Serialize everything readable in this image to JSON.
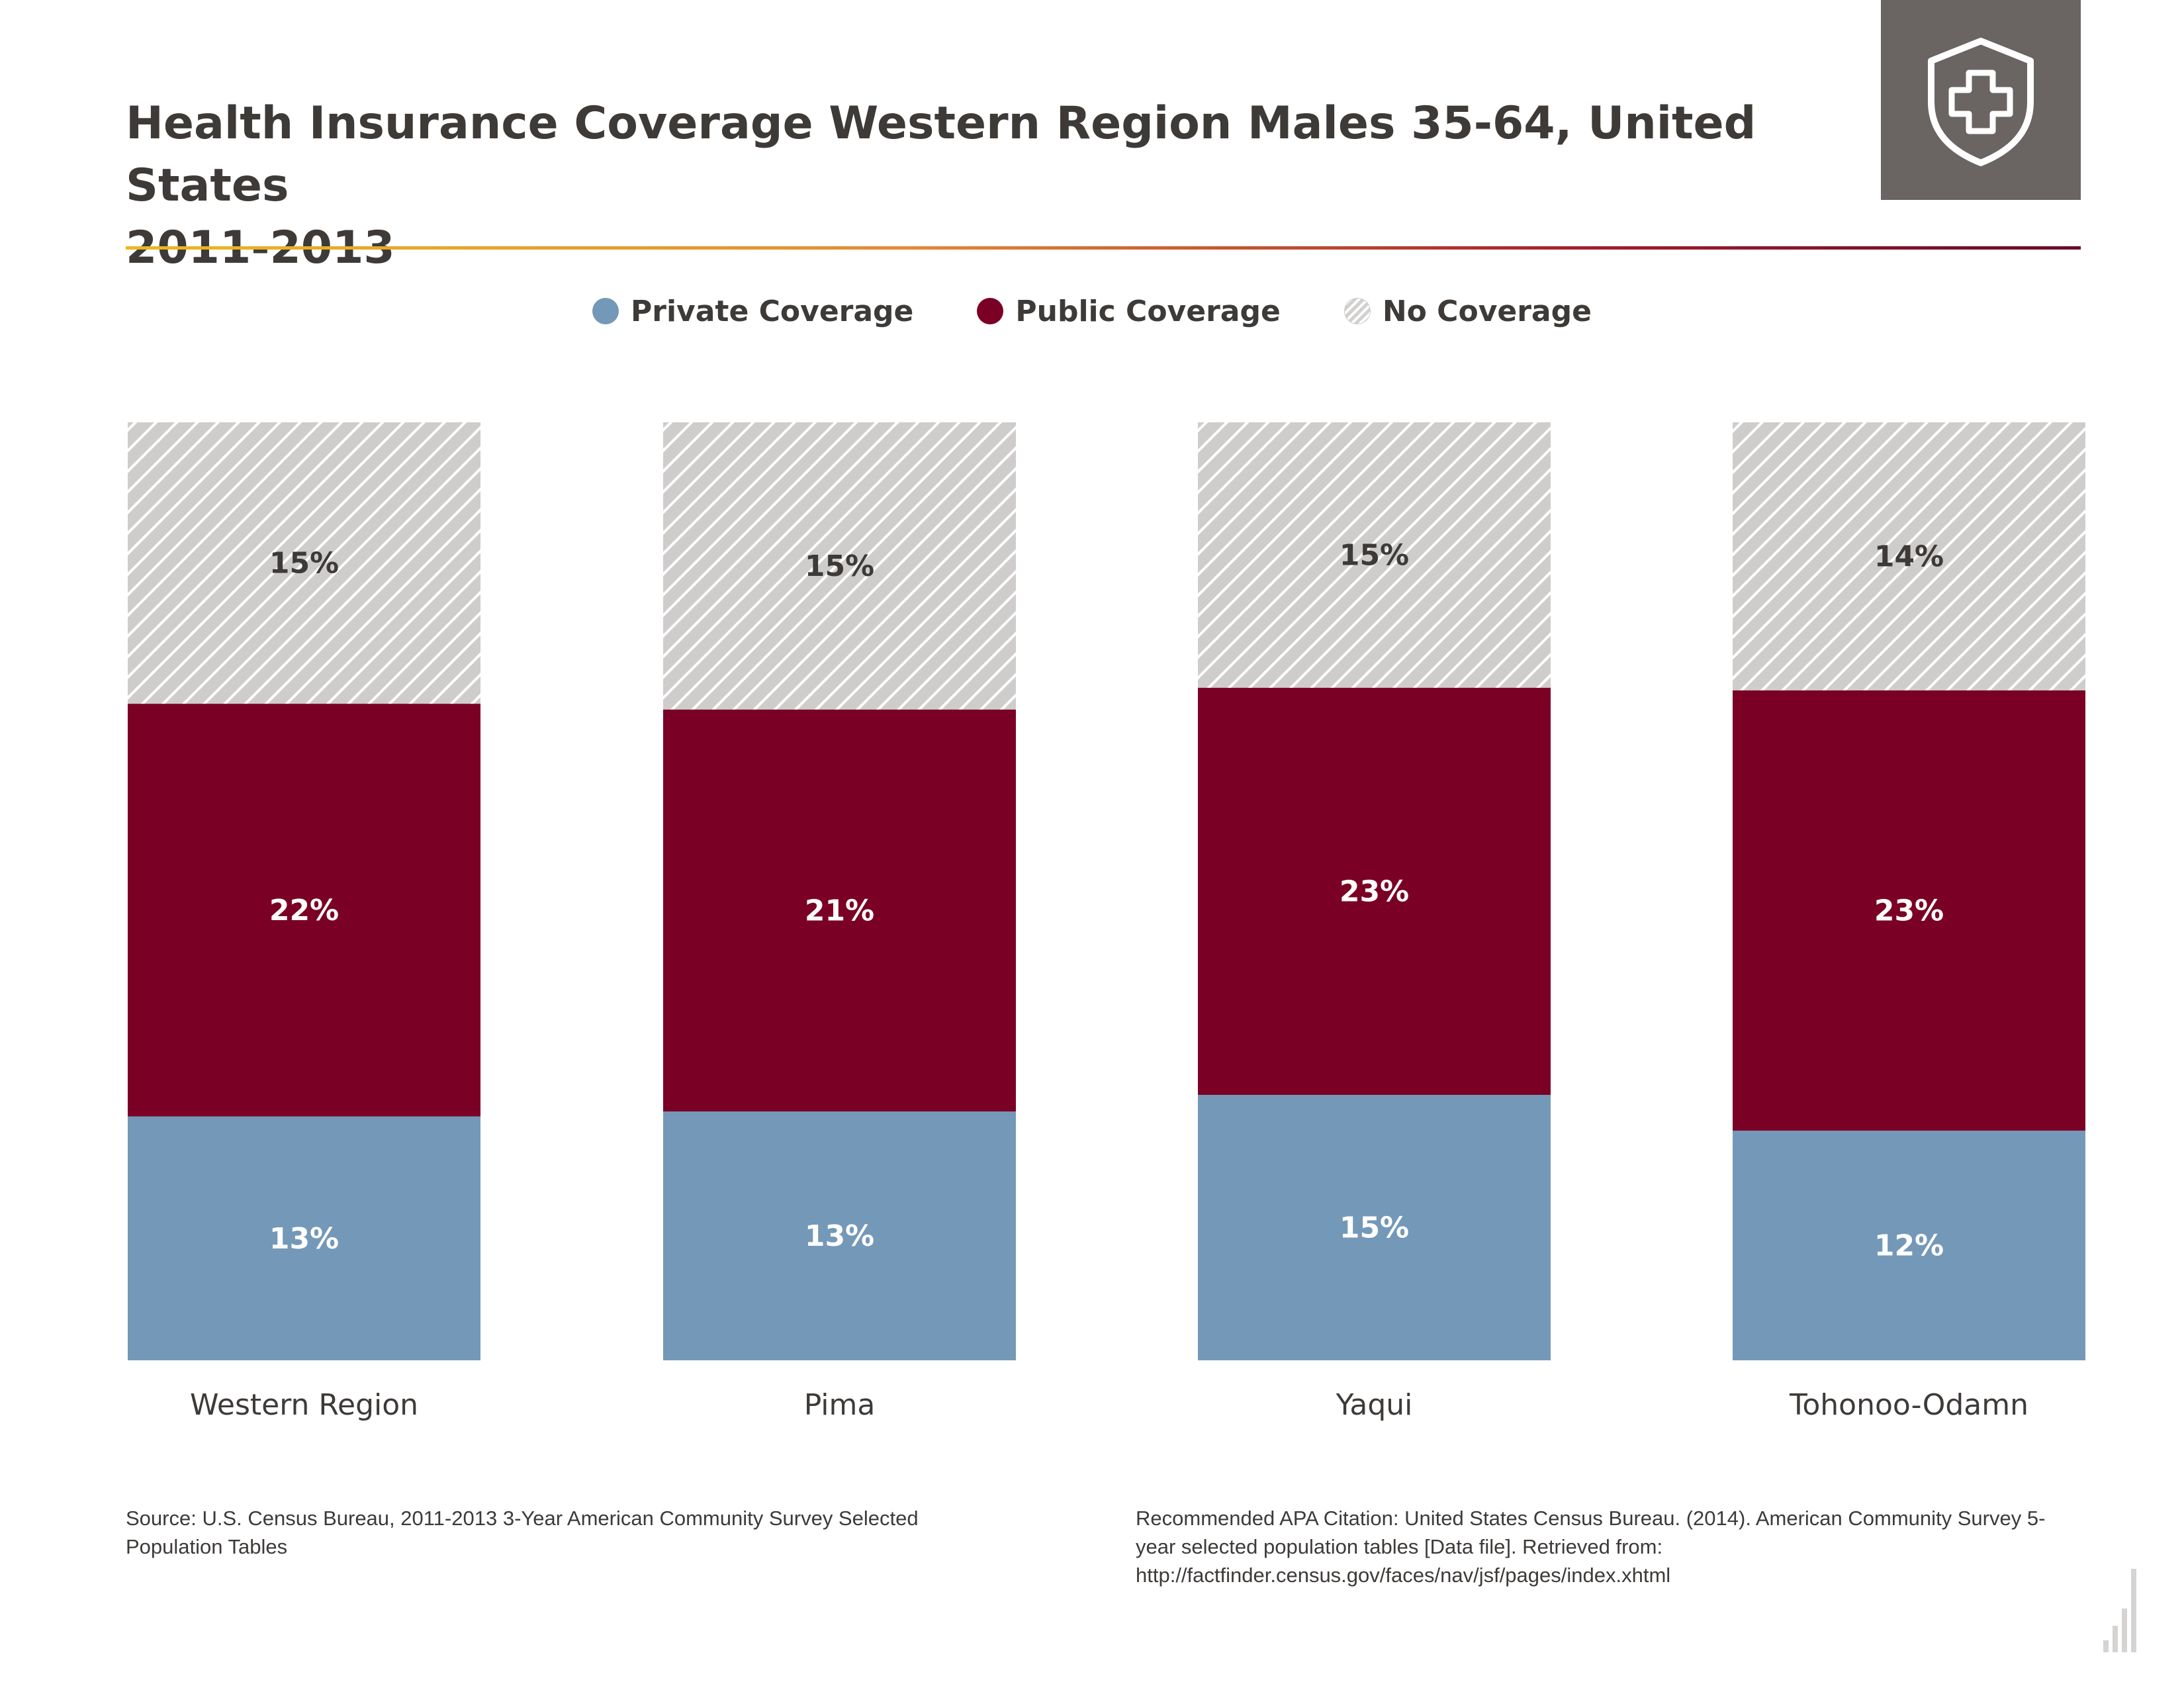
{
  "title": {
    "line1": "Health Insurance Coverage Western Region Males 35-64, United States",
    "line2": "2011-2013"
  },
  "badge": {
    "icon": "shield-cross-icon",
    "background": "#6a6463"
  },
  "legend": {
    "items": [
      {
        "label": "Private Coverage",
        "color": "#7498b8"
      },
      {
        "label": "Public Coverage",
        "color": "#7a0025"
      },
      {
        "label": "No Coverage",
        "color": "#cfcdcb"
      }
    ]
  },
  "chart_data": {
    "type": "bar",
    "stacked": true,
    "categories": [
      "Western Region",
      "Pima",
      "Yaqui",
      "Tohonoo-Odamn"
    ],
    "series": [
      {
        "name": "Private Coverage",
        "values": [
          13,
          13,
          15,
          12
        ],
        "labels": [
          "13%",
          "13%",
          "15%",
          "12%"
        ],
        "color": "#7498b8"
      },
      {
        "name": "Public Coverage",
        "values": [
          22,
          21,
          23,
          23
        ],
        "labels": [
          "22%",
          "21%",
          "23%",
          "23%"
        ],
        "color": "#7a0025"
      },
      {
        "name": "No Coverage",
        "values": [
          15,
          15,
          15,
          14
        ],
        "labels": [
          "15%",
          "15%",
          "15%",
          "14%"
        ],
        "color": "#cfcdcb",
        "pattern": "diagonal-hatch"
      }
    ],
    "title": "Health Insurance Coverage Western Region Males 35-64, United States 2011-2013",
    "xlabel": "",
    "ylabel": "",
    "grid": false,
    "legend_position": "top-center"
  },
  "footer": {
    "source": "Source: U.S. Census Bureau, 2011-2013 3-Year American Community Survey Selected Population Tables",
    "citation": "Recommended APA Citation: United States Census Bureau. (2014). American Community Survey 5-year selected population tables [Data file]. Retrieved from: http://factfinder.census.gov/faces/nav/jsf/pages/index.xhtml"
  }
}
